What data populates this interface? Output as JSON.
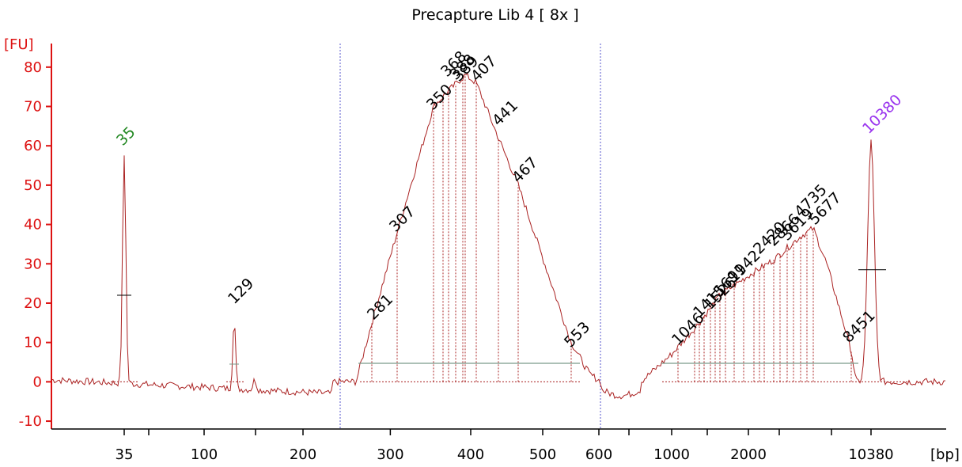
{
  "chart_data": {
    "type": "line",
    "title": "Precapture Lib 4  [ 8x ]",
    "ylabel": "[FU]",
    "xlabel": "[bp]",
    "ylim": [
      -12,
      86
    ],
    "yticks": [
      -10,
      0,
      10,
      20,
      30,
      40,
      50,
      60,
      70,
      80
    ],
    "xtick_labels": [
      "35",
      "100",
      "200",
      "300",
      "400",
      "500",
      "600",
      "1000",
      "2000",
      "10380"
    ],
    "peak_labels": [
      "35",
      "129",
      "281",
      "307",
      "350",
      "368",
      "389",
      "388",
      "407",
      "441",
      "467",
      "553",
      "1046",
      "1415",
      "1526",
      "1691",
      "1942",
      "2420",
      "2866",
      "3619",
      "4735",
      "5677",
      "8451",
      "10380"
    ],
    "series": [
      {
        "markers": [
          {
            "label": "35",
            "x": 35,
            "y": 58
          },
          {
            "label": "10380",
            "x": 10380,
            "y": 61
          }
        ],
        "trace": [
          {
            "x": 35,
            "y": 58
          },
          {
            "x": 129,
            "y": 18
          },
          {
            "x": 281,
            "y": 15
          },
          {
            "x": 307,
            "y": 38
          },
          {
            "x": 350,
            "y": 70
          },
          {
            "x": 368,
            "y": 74
          },
          {
            "x": 389,
            "y": 78
          },
          {
            "x": 407,
            "y": 76
          },
          {
            "x": 441,
            "y": 62
          },
          {
            "x": 467,
            "y": 50
          },
          {
            "x": 553,
            "y": 10
          },
          {
            "x": 1046,
            "y": 8
          },
          {
            "x": 1415,
            "y": 15
          },
          {
            "x": 1526,
            "y": 18
          },
          {
            "x": 1691,
            "y": 22
          },
          {
            "x": 1942,
            "y": 26
          },
          {
            "x": 2420,
            "y": 29
          },
          {
            "x": 2866,
            "y": 32
          },
          {
            "x": 3619,
            "y": 35
          },
          {
            "x": 4735,
            "y": 38
          },
          {
            "x": 5677,
            "y": 39
          },
          {
            "x": 8451,
            "y": 8
          },
          {
            "x": 10380,
            "y": 61
          }
        ]
      }
    ],
    "colors": {
      "trace": "#aa2222",
      "axis": "#dd1111",
      "marker_lower": "#228822",
      "marker_upper": "#9933ee",
      "label": "#000000",
      "region_line": "#7a9a8a",
      "divider": "#5555cc"
    }
  }
}
